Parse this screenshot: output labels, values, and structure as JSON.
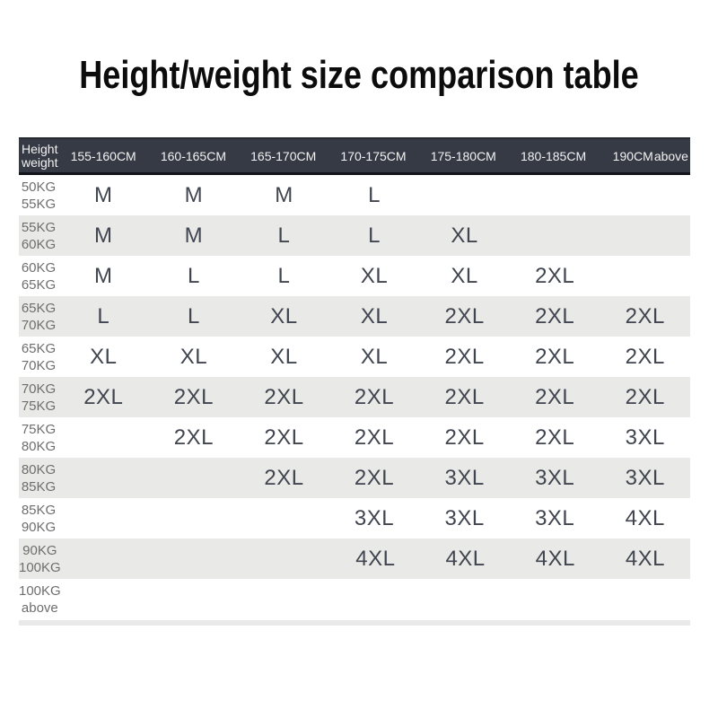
{
  "chart_data": {
    "type": "table",
    "title": "Height/weight size comparison table",
    "corner_header": [
      "Height",
      "weight"
    ],
    "columns": [
      "155-160CM",
      "160-165CM",
      "165-170CM",
      "170-175CM",
      "175-180CM",
      "180-185CM",
      "190CM above"
    ],
    "rows": [
      {
        "weight": [
          "50KG",
          "55KG"
        ],
        "sizes": [
          "M",
          "M",
          "M",
          "L",
          "",
          "",
          ""
        ]
      },
      {
        "weight": [
          "55KG",
          "60KG"
        ],
        "sizes": [
          "M",
          "M",
          "L",
          "L",
          "XL",
          "",
          ""
        ]
      },
      {
        "weight": [
          "60KG",
          "65KG"
        ],
        "sizes": [
          "M",
          "L",
          "L",
          "XL",
          "XL",
          "2XL",
          ""
        ]
      },
      {
        "weight": [
          "65KG",
          "70KG"
        ],
        "sizes": [
          "L",
          "L",
          "XL",
          "XL",
          "2XL",
          "2XL",
          "2XL"
        ]
      },
      {
        "weight": [
          "65KG",
          "70KG"
        ],
        "sizes": [
          "XL",
          "XL",
          "XL",
          "XL",
          "2XL",
          "2XL",
          "2XL"
        ]
      },
      {
        "weight": [
          "70KG",
          "75KG"
        ],
        "sizes": [
          "2XL",
          "2XL",
          "2XL",
          "2XL",
          "2XL",
          "2XL",
          "2XL"
        ]
      },
      {
        "weight": [
          "75KG",
          "80KG"
        ],
        "sizes": [
          "",
          "2XL",
          "2XL",
          "2XL",
          "2XL",
          "2XL",
          "3XL"
        ]
      },
      {
        "weight": [
          "80KG",
          "85KG"
        ],
        "sizes": [
          "",
          "",
          "2XL",
          "2XL",
          "3XL",
          "3XL",
          "3XL"
        ]
      },
      {
        "weight": [
          "85KG",
          "90KG"
        ],
        "sizes": [
          "",
          "",
          "",
          "3XL",
          "3XL",
          "3XL",
          "4XL"
        ]
      },
      {
        "weight": [
          "90KG",
          "100KG"
        ],
        "sizes": [
          "",
          "",
          "",
          "4XL",
          "4XL",
          "4XL",
          "4XL"
        ]
      },
      {
        "weight": [
          "100KG",
          "above"
        ],
        "sizes": [
          "",
          "",
          "",
          "",
          "",
          "",
          ""
        ]
      }
    ]
  },
  "table": {
    "last_header": {
      "main": "190CM",
      "suffix": "above"
    }
  },
  "colors": {
    "header_bg": "#353a45",
    "header_text": "#f2f2f2",
    "row_alt_bg": "#e9e9e7",
    "value_text": "#40454f",
    "label_text": "#6e6e6e",
    "title_text": "#0c0c0c",
    "strip": "#e9e9e9"
  }
}
